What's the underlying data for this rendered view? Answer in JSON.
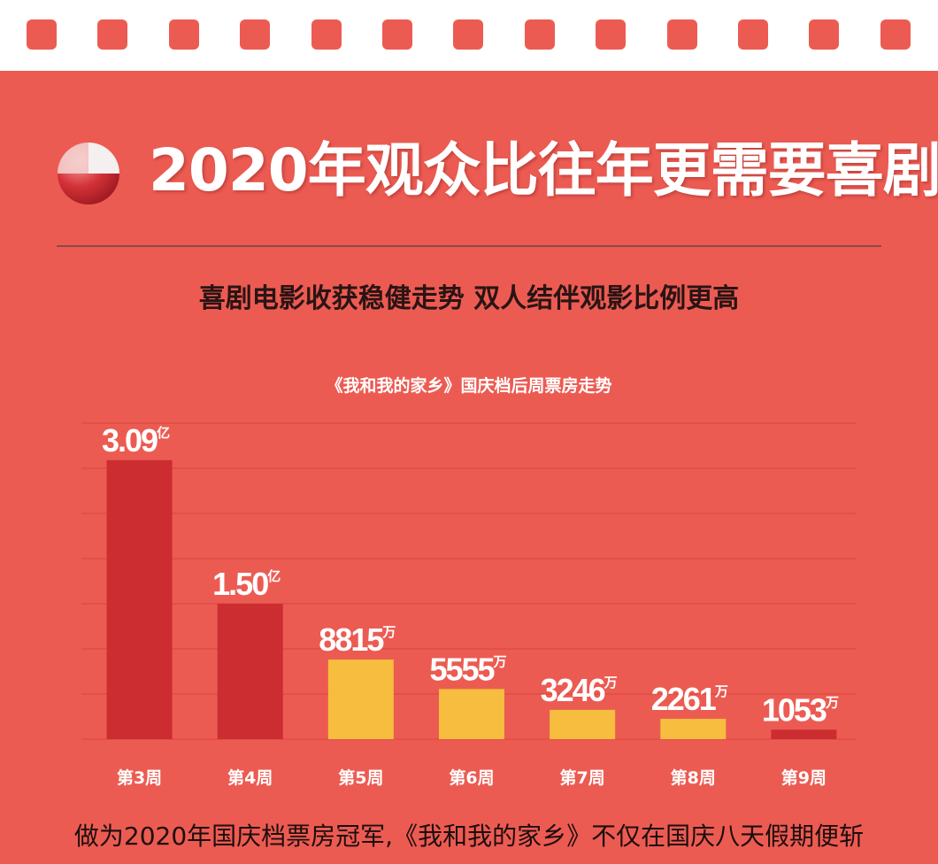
{
  "header": {
    "title": "2020年观众比往年更需要喜剧",
    "subtitle": "喜剧电影收获稳健走势 双人结伴观影比例更高"
  },
  "colors": {
    "background": "#ec5b52",
    "bar_dark": "#cb2d30",
    "bar_yellow": "#f6bd3e",
    "text_white": "#ffffff"
  },
  "chart_data": {
    "type": "bar",
    "title": "《我和我的家乡》国庆档后周票房走势",
    "categories": [
      "第3周",
      "第4周",
      "第5周",
      "第6周",
      "第7周",
      "第8周",
      "第9周"
    ],
    "values": [
      30900,
      15000,
      8815,
      5555,
      3246,
      2261,
      1053
    ],
    "value_unit": "万",
    "labels": [
      {
        "number": "3.09",
        "unit": "亿"
      },
      {
        "number": "1.50",
        "unit": "亿"
      },
      {
        "number": "8815",
        "unit": "万"
      },
      {
        "number": "5555",
        "unit": "万"
      },
      {
        "number": "3246",
        "unit": "万"
      },
      {
        "number": "2261",
        "unit": "万"
      },
      {
        "number": "1053",
        "unit": "万"
      }
    ],
    "bar_colors": [
      "#cb2d30",
      "#cb2d30",
      "#f6bd3e",
      "#f6bd3e",
      "#f6bd3e",
      "#f6bd3e",
      "#cb2d30"
    ],
    "ylim": [
      0,
      35000
    ],
    "grid": true,
    "xlabel": "",
    "ylabel": ""
  },
  "footer": {
    "text": "做为2020年国庆档票房冠军,《我和我的家乡》不仅在国庆八天假期便斩"
  }
}
